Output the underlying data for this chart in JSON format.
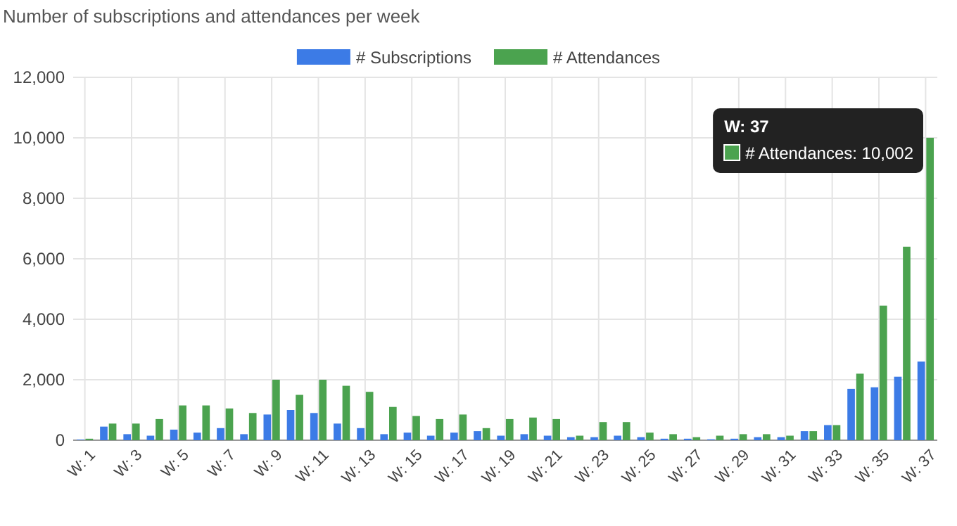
{
  "chart_data": {
    "type": "bar",
    "title": "Number of subscriptions and attendances per week",
    "categories": [
      "W: 1",
      null,
      "W: 3",
      null,
      "W: 5",
      null,
      "W: 7",
      null,
      "W: 9",
      null,
      "W: 11",
      null,
      "W: 13",
      null,
      "W: 15",
      null,
      "W: 17",
      null,
      "W: 19",
      null,
      "W: 21",
      null,
      "W: 23",
      null,
      "W: 25",
      null,
      "W: 27",
      null,
      "W: 29",
      null,
      "W: 31",
      null,
      "W: 33",
      null,
      "W: 35",
      null,
      "W: 37"
    ],
    "series": [
      {
        "name": "# Subscriptions",
        "color": "#3c7be6",
        "values": [
          20,
          450,
          200,
          150,
          350,
          250,
          400,
          200,
          850,
          1000,
          900,
          550,
          400,
          200,
          250,
          150,
          250,
          300,
          150,
          200,
          150,
          100,
          100,
          150,
          100,
          50,
          50,
          30,
          50,
          100,
          100,
          300,
          500,
          1700,
          1750,
          2100,
          2600
        ]
      },
      {
        "name": "# Attendances",
        "color": "#4ba34f",
        "values": [
          50,
          550,
          550,
          700,
          1150,
          1150,
          1050,
          900,
          2000,
          1500,
          2000,
          1800,
          1600,
          1100,
          800,
          700,
          850,
          400,
          700,
          750,
          700,
          150,
          600,
          600,
          250,
          200,
          100,
          150,
          200,
          200,
          150,
          300,
          500,
          2200,
          4450,
          6400,
          10002
        ]
      }
    ],
    "ylim": [
      0,
      12000
    ],
    "yticks": [
      {
        "value": 0,
        "label": "0"
      },
      {
        "value": 2000,
        "label": "2,000"
      },
      {
        "value": 4000,
        "label": "4,000"
      },
      {
        "value": 6000,
        "label": "6,000"
      },
      {
        "value": 8000,
        "label": "8,000"
      },
      {
        "value": 10000,
        "label": "10,000"
      },
      {
        "value": 12000,
        "label": "12,000"
      }
    ],
    "grid": true,
    "legend": "top",
    "annotations": [
      "W: 37",
      "# Attendances: 10,002"
    ]
  }
}
